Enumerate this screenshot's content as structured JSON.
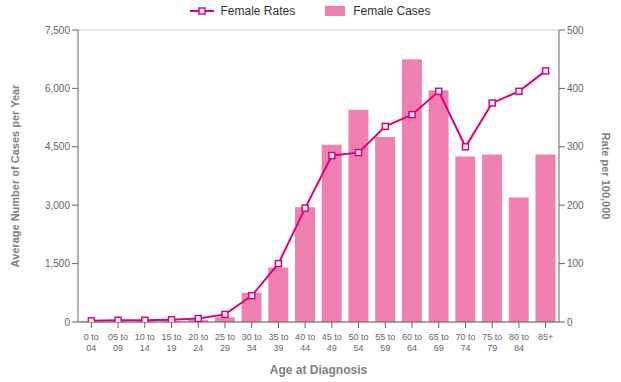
{
  "chart_data": {
    "type": "bar",
    "xlabel": "Age at Diagnosis",
    "ylabel": "Average Number of Cases per Year",
    "y2label": "Rate per 100,000",
    "categories": [
      "0 to\n04",
      "05 to\n09",
      "10 to\n14",
      "15 to\n19",
      "20 to\n24",
      "25 to\n29",
      "30 to\n34",
      "35 to\n39",
      "40 to\n44",
      "45 to\n49",
      "50 to\n54",
      "55 to\n59",
      "60 to\n64",
      "65 to\n69",
      "70 to\n74",
      "75 to\n79",
      "80 to\n84",
      "85+"
    ],
    "series": [
      {
        "name": "Female Rates",
        "type": "line",
        "axis": "y2",
        "color": "#e0007f",
        "marker": "square",
        "values": [
          2,
          3,
          3,
          4,
          6,
          13,
          45,
          100,
          195,
          285,
          290,
          335,
          355,
          395,
          300,
          375,
          395,
          430
        ]
      },
      {
        "name": "Female Cases",
        "type": "bar",
        "color": "#f080b0",
        "values": [
          15,
          20,
          20,
          25,
          50,
          120,
          750,
          1400,
          2950,
          4550,
          5450,
          4750,
          6750,
          5950,
          4250,
          4300,
          3200,
          4300
        ]
      }
    ],
    "ylim": [
      0,
      7500
    ],
    "yticks": [
      0,
      {
        "value": 1500,
        "label": "1,500"
      },
      {
        "value": 3000,
        "label": "3,000"
      },
      {
        "value": 4500,
        "label": "4,500"
      },
      {
        "value": 6000,
        "label": "6,000"
      },
      {
        "value": 7500,
        "label": "7,500"
      }
    ],
    "y2lim": [
      0,
      500
    ],
    "y2ticks": [
      0,
      100,
      200,
      300,
      400,
      500
    ],
    "grid": true,
    "legend": "top"
  }
}
